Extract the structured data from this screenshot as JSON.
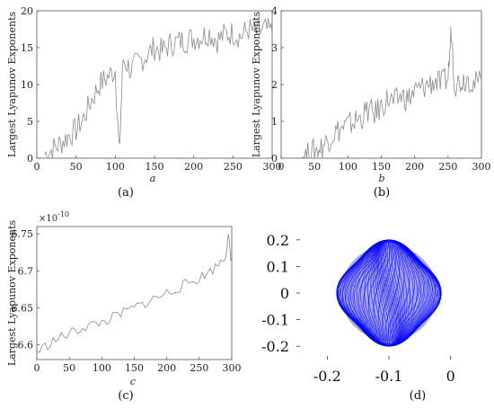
{
  "chart_data": [
    {
      "id": "a",
      "type": "line",
      "caption": "(a)",
      "xlabel": "a",
      "ylabel": "Largest Lyapunov Exponents",
      "xlim": [
        0,
        300
      ],
      "ylim": [
        0,
        20
      ],
      "xticks": [
        "0",
        "50",
        "100",
        "150",
        "200",
        "250",
        "300"
      ],
      "yticks": [
        "0",
        "5",
        "10",
        "15",
        "20"
      ],
      "color": "#8a8a8a",
      "series": [
        {
          "x": [
            10,
            20,
            30,
            40,
            50,
            60,
            70,
            80,
            90,
            100,
            105,
            110,
            120,
            130,
            140,
            150,
            160,
            170,
            180,
            190,
            200,
            210,
            220,
            230,
            240,
            250,
            260,
            270,
            280,
            290,
            300
          ],
          "y": [
            0.5,
            1.2,
            2,
            3,
            3.8,
            5.5,
            8,
            10,
            11,
            12,
            0.5,
            13.5,
            12,
            13,
            14,
            15,
            14.5,
            15.5,
            15.8,
            16,
            16.3,
            16.5,
            17,
            16,
            16.8,
            17,
            16.5,
            17.5,
            17,
            17.5,
            17
          ]
        }
      ]
    },
    {
      "id": "b",
      "type": "line",
      "caption": "(b)",
      "xlabel": "b",
      "ylabel": "Largest Lyapunov Exponents",
      "xlim": [
        0,
        300
      ],
      "ylim": [
        0,
        4
      ],
      "xticks": [
        "0",
        "50",
        "100",
        "150",
        "200",
        "250",
        "300"
      ],
      "yticks": [
        "0",
        "1",
        "2",
        "3",
        "4"
      ],
      "color": "#8a8a8a",
      "series": [
        {
          "x": [
            30,
            40,
            50,
            60,
            70,
            80,
            90,
            100,
            110,
            120,
            130,
            140,
            150,
            160,
            170,
            180,
            190,
            200,
            210,
            220,
            230,
            240,
            250,
            255,
            260,
            270,
            280,
            290,
            300
          ],
          "y": [
            0.05,
            0.1,
            0.2,
            0.3,
            0.5,
            0.7,
            0.8,
            0.9,
            1.0,
            1.1,
            1.3,
            1.2,
            1.4,
            1.6,
            1.5,
            1.7,
            1.6,
            1.8,
            1.9,
            2.0,
            2.1,
            2.0,
            2.2,
            3.5,
            2.0,
            2.1,
            2.2,
            2.0,
            2.1
          ]
        }
      ]
    },
    {
      "id": "c",
      "type": "line",
      "caption": "(c)",
      "xlabel": "c",
      "ylabel": "Largest Lyapunov Exponents",
      "multiplier": "×10",
      "multiplier_exp": "-10",
      "xlim": [
        0,
        300
      ],
      "ylim": [
        6.58,
        6.76
      ],
      "xticks": [
        "0",
        "50",
        "100",
        "150",
        "200",
        "250",
        "300"
      ],
      "yticks": [
        "6.6",
        "6.65",
        "6.7",
        "6.75"
      ],
      "color": "#8a8a8a",
      "series": [
        {
          "x": [
            0,
            25,
            50,
            75,
            100,
            125,
            150,
            175,
            200,
            225,
            250,
            275,
            290,
            295,
            300
          ],
          "y": [
            6.59,
            6.605,
            6.615,
            6.625,
            6.63,
            6.64,
            6.65,
            6.66,
            6.67,
            6.68,
            6.69,
            6.705,
            6.72,
            6.745,
            6.71
          ]
        }
      ]
    },
    {
      "id": "d",
      "type": "line",
      "caption": "(d)",
      "xlim": [
        -0.25,
        0.05
      ],
      "ylim": [
        -0.25,
        0.25
      ],
      "xticks": [
        "-0.2",
        "-0.1",
        "0"
      ],
      "yticks": [
        "-0.2",
        "-0.1",
        "0",
        "0.1",
        "0.2"
      ],
      "color": "#0000ff",
      "attractor": {
        "center": [
          -0.1,
          0
        ],
        "half_width": 0.085,
        "half_height": 0.2
      }
    }
  ]
}
